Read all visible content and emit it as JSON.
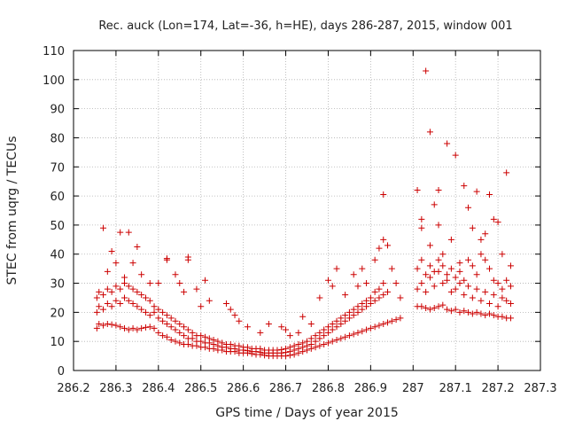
{
  "chart_data": {
    "type": "scatter",
    "title": "Rec. auck (Lon=174, Lat=-36, h=HE), days 286-287, 2015, window 001",
    "xlabel": "GPS time / Days of year 2015",
    "ylabel": "STEC from uqrg / TECUs",
    "xlim": [
      286.2,
      287.3
    ],
    "ylim": [
      0,
      110
    ],
    "x_ticks": [
      286.2,
      286.3,
      286.4,
      286.5,
      286.6,
      286.7,
      286.8,
      286.9,
      287,
      287.1,
      287.2,
      287.3
    ],
    "x_tick_labels": [
      "286.2",
      "286.3",
      "286.4",
      "286.5",
      "286.6",
      "286.7",
      "286.8",
      "286.9",
      "287",
      "287.1",
      "287.2",
      "287.3"
    ],
    "y_ticks": [
      0,
      10,
      20,
      30,
      40,
      50,
      60,
      70,
      80,
      90,
      100,
      110
    ],
    "y_tick_labels": [
      "0",
      "10",
      "20",
      "30",
      "40",
      "50",
      "60",
      "70",
      "80",
      "90",
      "100",
      "110"
    ],
    "grid": true,
    "marker": "plus",
    "series_color": "#cc0000",
    "points": [
      [
        286.255,
        14.5
      ],
      [
        286.26,
        16
      ],
      [
        286.27,
        15.5
      ],
      [
        286.28,
        16
      ],
      [
        286.29,
        15.8
      ],
      [
        286.3,
        15.5
      ],
      [
        286.31,
        15
      ],
      [
        286.32,
        14.5
      ],
      [
        286.33,
        14
      ],
      [
        286.34,
        14.5
      ],
      [
        286.35,
        14
      ],
      [
        286.36,
        14.5
      ],
      [
        286.37,
        14.8
      ],
      [
        286.38,
        15
      ],
      [
        286.39,
        14.5
      ],
      [
        286.4,
        13
      ],
      [
        286.41,
        12
      ],
      [
        286.42,
        11.5
      ],
      [
        286.43,
        10.5
      ],
      [
        286.44,
        10
      ],
      [
        286.45,
        9.5
      ],
      [
        286.46,
        9
      ],
      [
        286.47,
        9
      ],
      [
        286.48,
        8.5
      ],
      [
        286.49,
        8.5
      ],
      [
        286.5,
        8
      ],
      [
        286.51,
        8
      ],
      [
        286.52,
        7.5
      ],
      [
        286.53,
        7.5
      ],
      [
        286.54,
        7
      ],
      [
        286.55,
        7
      ],
      [
        286.56,
        6.5
      ],
      [
        286.57,
        6.5
      ],
      [
        286.58,
        6.5
      ],
      [
        286.59,
        6
      ],
      [
        286.6,
        6
      ],
      [
        286.61,
        6
      ],
      [
        286.62,
        5.8
      ],
      [
        286.63,
        5.5
      ],
      [
        286.64,
        5.5
      ],
      [
        286.65,
        5.2
      ],
      [
        286.66,
        5
      ],
      [
        286.67,
        5
      ],
      [
        286.68,
        5
      ],
      [
        286.69,
        5
      ],
      [
        286.7,
        5
      ],
      [
        286.71,
        5.2
      ],
      [
        286.72,
        5.5
      ],
      [
        286.73,
        6
      ],
      [
        286.74,
        6.5
      ],
      [
        286.75,
        7
      ],
      [
        286.76,
        7.5
      ],
      [
        286.77,
        8
      ],
      [
        286.78,
        8.5
      ],
      [
        286.79,
        9
      ],
      [
        286.8,
        9.5
      ],
      [
        286.81,
        10
      ],
      [
        286.82,
        10.5
      ],
      [
        286.83,
        11
      ],
      [
        286.84,
        11.5
      ],
      [
        286.85,
        12
      ],
      [
        286.86,
        12.5
      ],
      [
        286.87,
        13
      ],
      [
        286.88,
        13.5
      ],
      [
        286.89,
        14
      ],
      [
        286.9,
        14.5
      ],
      [
        286.91,
        15
      ],
      [
        286.92,
        15.5
      ],
      [
        286.93,
        16
      ],
      [
        286.94,
        16.5
      ],
      [
        286.95,
        17
      ],
      [
        286.96,
        17.5
      ],
      [
        286.97,
        18
      ],
      [
        286.255,
        20
      ],
      [
        286.26,
        22
      ],
      [
        286.27,
        21
      ],
      [
        286.28,
        23
      ],
      [
        286.29,
        22
      ],
      [
        286.3,
        24
      ],
      [
        286.31,
        23
      ],
      [
        286.32,
        25
      ],
      [
        286.33,
        24
      ],
      [
        286.34,
        23
      ],
      [
        286.35,
        22
      ],
      [
        286.36,
        21
      ],
      [
        286.37,
        20
      ],
      [
        286.38,
        19
      ],
      [
        286.39,
        20
      ],
      [
        286.4,
        18
      ],
      [
        286.41,
        17
      ],
      [
        286.42,
        16
      ],
      [
        286.43,
        15
      ],
      [
        286.44,
        14
      ],
      [
        286.45,
        13
      ],
      [
        286.46,
        12
      ],
      [
        286.47,
        11
      ],
      [
        286.48,
        11
      ],
      [
        286.49,
        10
      ],
      [
        286.5,
        10
      ],
      [
        286.51,
        9.5
      ],
      [
        286.52,
        9.5
      ],
      [
        286.53,
        9
      ],
      [
        286.54,
        8.5
      ],
      [
        286.55,
        8
      ],
      [
        286.56,
        8
      ],
      [
        286.57,
        7.5
      ],
      [
        286.58,
        7.5
      ],
      [
        286.59,
        7
      ],
      [
        286.6,
        7
      ],
      [
        286.61,
        6.8
      ],
      [
        286.62,
        6.5
      ],
      [
        286.63,
        6.5
      ],
      [
        286.64,
        6.3
      ],
      [
        286.65,
        6
      ],
      [
        286.66,
        6
      ],
      [
        286.67,
        6
      ],
      [
        286.68,
        6
      ],
      [
        286.69,
        6
      ],
      [
        286.7,
        6.2
      ],
      [
        286.71,
        6.5
      ],
      [
        286.72,
        7
      ],
      [
        286.73,
        7.5
      ],
      [
        286.74,
        8
      ],
      [
        286.75,
        8.5
      ],
      [
        286.76,
        9
      ],
      [
        286.77,
        10
      ],
      [
        286.78,
        11
      ],
      [
        286.79,
        12
      ],
      [
        286.8,
        13
      ],
      [
        286.81,
        14
      ],
      [
        286.82,
        15
      ],
      [
        286.83,
        16
      ],
      [
        286.84,
        17
      ],
      [
        286.85,
        18
      ],
      [
        286.86,
        19
      ],
      [
        286.87,
        20
      ],
      [
        286.88,
        21
      ],
      [
        286.89,
        22
      ],
      [
        286.9,
        23
      ],
      [
        286.91,
        24
      ],
      [
        286.92,
        25
      ],
      [
        286.93,
        26
      ],
      [
        286.94,
        27
      ],
      [
        286.255,
        25
      ],
      [
        286.26,
        27
      ],
      [
        286.27,
        26
      ],
      [
        286.28,
        28
      ],
      [
        286.29,
        27
      ],
      [
        286.3,
        29
      ],
      [
        286.31,
        28
      ],
      [
        286.32,
        30
      ],
      [
        286.33,
        29
      ],
      [
        286.34,
        28
      ],
      [
        286.35,
        27
      ],
      [
        286.36,
        26
      ],
      [
        286.37,
        25
      ],
      [
        286.38,
        24
      ],
      [
        286.39,
        22
      ],
      [
        286.4,
        21
      ],
      [
        286.41,
        20
      ],
      [
        286.42,
        19
      ],
      [
        286.43,
        18
      ],
      [
        286.44,
        17
      ],
      [
        286.45,
        16
      ],
      [
        286.46,
        15
      ],
      [
        286.47,
        14
      ],
      [
        286.48,
        13
      ],
      [
        286.49,
        12
      ],
      [
        286.5,
        12
      ],
      [
        286.51,
        11.5
      ],
      [
        286.52,
        11
      ],
      [
        286.53,
        10.5
      ],
      [
        286.54,
        10
      ],
      [
        286.55,
        9.5
      ],
      [
        286.56,
        9
      ],
      [
        286.57,
        9
      ],
      [
        286.58,
        8.5
      ],
      [
        286.59,
        8.5
      ],
      [
        286.6,
        8
      ],
      [
        286.61,
        8
      ],
      [
        286.62,
        7.5
      ],
      [
        286.63,
        7.5
      ],
      [
        286.64,
        7.5
      ],
      [
        286.65,
        7
      ],
      [
        286.66,
        7
      ],
      [
        286.67,
        7
      ],
      [
        286.68,
        7
      ],
      [
        286.69,
        7.2
      ],
      [
        286.7,
        7.5
      ],
      [
        286.71,
        8
      ],
      [
        286.72,
        8.5
      ],
      [
        286.73,
        9
      ],
      [
        286.74,
        9.5
      ],
      [
        286.75,
        10
      ],
      [
        286.76,
        11
      ],
      [
        286.77,
        12
      ],
      [
        286.78,
        13
      ],
      [
        286.79,
        14
      ],
      [
        286.8,
        15
      ],
      [
        286.81,
        16
      ],
      [
        286.82,
        17
      ],
      [
        286.83,
        18
      ],
      [
        286.84,
        19
      ],
      [
        286.85,
        20
      ],
      [
        286.86,
        21
      ],
      [
        286.87,
        22
      ],
      [
        286.88,
        23
      ],
      [
        286.89,
        24
      ],
      [
        286.9,
        25
      ],
      [
        286.91,
        27
      ],
      [
        286.92,
        28
      ],
      [
        286.93,
        30
      ],
      [
        286.27,
        49
      ],
      [
        286.29,
        41
      ],
      [
        286.31,
        47.5
      ],
      [
        286.33,
        47.5
      ],
      [
        286.3,
        37
      ],
      [
        286.28,
        34
      ],
      [
        286.35,
        42.5
      ],
      [
        286.34,
        37
      ],
      [
        286.36,
        33
      ],
      [
        286.32,
        32
      ],
      [
        286.38,
        30
      ],
      [
        286.42,
        38.5
      ],
      [
        286.42,
        38
      ],
      [
        286.47,
        39
      ],
      [
        286.47,
        38
      ],
      [
        286.44,
        33
      ],
      [
        286.45,
        30
      ],
      [
        286.46,
        27
      ],
      [
        286.4,
        30
      ],
      [
        286.51,
        31
      ],
      [
        286.52,
        24
      ],
      [
        286.49,
        28
      ],
      [
        286.5,
        22
      ],
      [
        286.56,
        23
      ],
      [
        286.57,
        21
      ],
      [
        286.58,
        19
      ],
      [
        286.59,
        17
      ],
      [
        286.61,
        15
      ],
      [
        286.64,
        13
      ],
      [
        286.66,
        16
      ],
      [
        286.69,
        15
      ],
      [
        286.7,
        14
      ],
      [
        286.71,
        12
      ],
      [
        286.73,
        13
      ],
      [
        286.74,
        18.5
      ],
      [
        286.76,
        16
      ],
      [
        286.78,
        25
      ],
      [
        286.8,
        31
      ],
      [
        286.81,
        29
      ],
      [
        286.82,
        35
      ],
      [
        286.84,
        26
      ],
      [
        286.86,
        33
      ],
      [
        286.87,
        29
      ],
      [
        286.88,
        35
      ],
      [
        286.89,
        30
      ],
      [
        286.91,
        38
      ],
      [
        286.92,
        42
      ],
      [
        286.93,
        60.5
      ],
      [
        286.93,
        45
      ],
      [
        286.94,
        43
      ],
      [
        286.95,
        35
      ],
      [
        286.96,
        30
      ],
      [
        286.97,
        25
      ],
      [
        287.01,
        62
      ],
      [
        287.02,
        52
      ],
      [
        287.02,
        49
      ],
      [
        287.03,
        103
      ],
      [
        287.04,
        82
      ],
      [
        287.04,
        43
      ],
      [
        287.05,
        57
      ],
      [
        287.06,
        62
      ],
      [
        287.06,
        50
      ],
      [
        287.07,
        40
      ],
      [
        287.08,
        78
      ],
      [
        287.09,
        45
      ],
      [
        287.1,
        74
      ],
      [
        287.11,
        37
      ],
      [
        287.12,
        63.5
      ],
      [
        287.13,
        56
      ],
      [
        287.14,
        49
      ],
      [
        287.15,
        61.5
      ],
      [
        287.16,
        45
      ],
      [
        287.17,
        47
      ],
      [
        287.18,
        60.5
      ],
      [
        287.19,
        52
      ],
      [
        287.2,
        51
      ],
      [
        287.21,
        40
      ],
      [
        287.22,
        68
      ],
      [
        287.23,
        36
      ],
      [
        287.01,
        22
      ],
      [
        287.02,
        22
      ],
      [
        287.03,
        21.5
      ],
      [
        287.04,
        21
      ],
      [
        287.05,
        21.5
      ],
      [
        287.06,
        22
      ],
      [
        287.07,
        22.5
      ],
      [
        287.08,
        21
      ],
      [
        287.09,
        20.5
      ],
      [
        287.1,
        21
      ],
      [
        287.11,
        20
      ],
      [
        287.12,
        20.5
      ],
      [
        287.13,
        20
      ],
      [
        287.14,
        19.5
      ],
      [
        287.15,
        20
      ],
      [
        287.16,
        19.5
      ],
      [
        287.17,
        19
      ],
      [
        287.18,
        19.5
      ],
      [
        287.19,
        19
      ],
      [
        287.2,
        18.5
      ],
      [
        287.21,
        18.5
      ],
      [
        287.22,
        18
      ],
      [
        287.23,
        18
      ],
      [
        287.01,
        28
      ],
      [
        287.02,
        30
      ],
      [
        287.03,
        27
      ],
      [
        287.04,
        32
      ],
      [
        287.05,
        29
      ],
      [
        287.06,
        34
      ],
      [
        287.07,
        30
      ],
      [
        287.08,
        31
      ],
      [
        287.09,
        27
      ],
      [
        287.1,
        28
      ],
      [
        287.11,
        30
      ],
      [
        287.12,
        26
      ],
      [
        287.13,
        29
      ],
      [
        287.14,
        25
      ],
      [
        287.15,
        28
      ],
      [
        287.16,
        24
      ],
      [
        287.17,
        27
      ],
      [
        287.18,
        23
      ],
      [
        287.19,
        26
      ],
      [
        287.2,
        22
      ],
      [
        287.21,
        25
      ],
      [
        287.22,
        24
      ],
      [
        287.23,
        23
      ],
      [
        287.01,
        35
      ],
      [
        287.02,
        38
      ],
      [
        287.03,
        33
      ],
      [
        287.04,
        36
      ],
      [
        287.05,
        34
      ],
      [
        287.06,
        38
      ],
      [
        287.07,
        36
      ],
      [
        287.08,
        33
      ],
      [
        287.09,
        35
      ],
      [
        287.1,
        32
      ],
      [
        287.11,
        34
      ],
      [
        287.12,
        31
      ],
      [
        287.13,
        38
      ],
      [
        287.14,
        36
      ],
      [
        287.15,
        33
      ],
      [
        287.16,
        40
      ],
      [
        287.17,
        38
      ],
      [
        287.18,
        35
      ],
      [
        287.19,
        31
      ],
      [
        287.2,
        30
      ],
      [
        287.21,
        28
      ],
      [
        287.22,
        31
      ],
      [
        287.23,
        29
      ]
    ]
  }
}
